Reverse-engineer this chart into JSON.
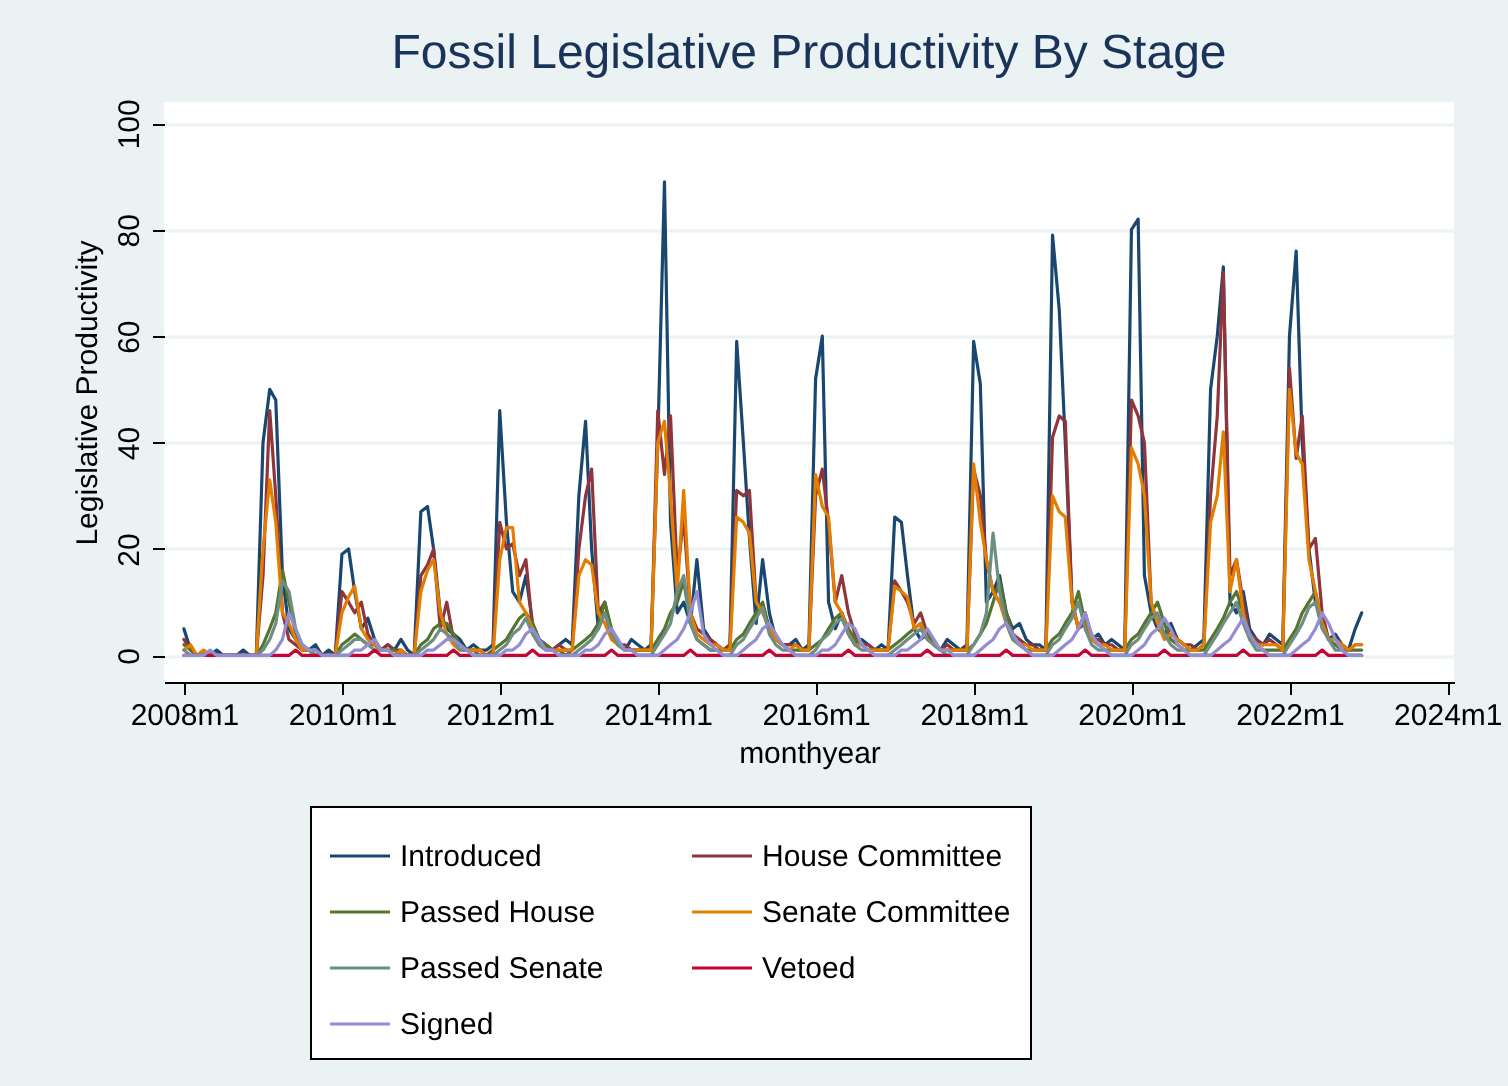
{
  "chart_data": {
    "type": "line",
    "title": "Fossil Legislative Productivity By Stage",
    "xlabel": "monthyear",
    "ylabel": "Legislative Productivity",
    "x": [
      "2008-01",
      "2008-02",
      "2008-03",
      "2008-04",
      "2008-05",
      "2008-06",
      "2008-07",
      "2008-08",
      "2008-09",
      "2008-10",
      "2008-11",
      "2008-12",
      "2009-01",
      "2009-02",
      "2009-03",
      "2009-04",
      "2009-05",
      "2009-06",
      "2009-07",
      "2009-08",
      "2009-09",
      "2009-10",
      "2009-11",
      "2009-12",
      "2010-01",
      "2010-02",
      "2010-03",
      "2010-04",
      "2010-05",
      "2010-06",
      "2010-07",
      "2010-08",
      "2010-09",
      "2010-10",
      "2010-11",
      "2010-12",
      "2011-01",
      "2011-02",
      "2011-03",
      "2011-04",
      "2011-05",
      "2011-06",
      "2011-07",
      "2011-08",
      "2011-09",
      "2011-10",
      "2011-11",
      "2011-12",
      "2012-01",
      "2012-02",
      "2012-03",
      "2012-04",
      "2012-05",
      "2012-06",
      "2012-07",
      "2012-08",
      "2012-09",
      "2012-10",
      "2012-11",
      "2012-12",
      "2013-01",
      "2013-02",
      "2013-03",
      "2013-04",
      "2013-05",
      "2013-06",
      "2013-07",
      "2013-08",
      "2013-09",
      "2013-10",
      "2013-11",
      "2013-12",
      "2014-01",
      "2014-02",
      "2014-03",
      "2014-04",
      "2014-05",
      "2014-06",
      "2014-07",
      "2014-08",
      "2014-09",
      "2014-10",
      "2014-11",
      "2014-12",
      "2015-01",
      "2015-02",
      "2015-03",
      "2015-04",
      "2015-05",
      "2015-06",
      "2015-07",
      "2015-08",
      "2015-09",
      "2015-10",
      "2015-11",
      "2015-12",
      "2016-01",
      "2016-02",
      "2016-03",
      "2016-04",
      "2016-05",
      "2016-06",
      "2016-07",
      "2016-08",
      "2016-09",
      "2016-10",
      "2016-11",
      "2016-12",
      "2017-01",
      "2017-02",
      "2017-03",
      "2017-04",
      "2017-05",
      "2017-06",
      "2017-07",
      "2017-08",
      "2017-09",
      "2017-10",
      "2017-11",
      "2017-12",
      "2018-01",
      "2018-02",
      "2018-03",
      "2018-04",
      "2018-05",
      "2018-06",
      "2018-07",
      "2018-08",
      "2018-09",
      "2018-10",
      "2018-11",
      "2018-12",
      "2019-01",
      "2019-02",
      "2019-03",
      "2019-04",
      "2019-05",
      "2019-06",
      "2019-07",
      "2019-08",
      "2019-09",
      "2019-10",
      "2019-11",
      "2019-12",
      "2020-01",
      "2020-02",
      "2020-03",
      "2020-04",
      "2020-05",
      "2020-06",
      "2020-07",
      "2020-08",
      "2020-09",
      "2020-10",
      "2020-11",
      "2020-12",
      "2021-01",
      "2021-02",
      "2021-03",
      "2021-04",
      "2021-05",
      "2021-06",
      "2021-07",
      "2021-08",
      "2021-09",
      "2021-10",
      "2021-11",
      "2021-12",
      "2022-01",
      "2022-02",
      "2022-03",
      "2022-04",
      "2022-05",
      "2022-06",
      "2022-07",
      "2022-08",
      "2022-09",
      "2022-10",
      "2022-11",
      "2022-12"
    ],
    "series": [
      {
        "name": "Introduced",
        "color": "#1a476f",
        "values": [
          5,
          1,
          0,
          0,
          0,
          1,
          0,
          0,
          0,
          1,
          0,
          0,
          40,
          50,
          48,
          15,
          5,
          3,
          1,
          1,
          2,
          0,
          1,
          0,
          19,
          20,
          12,
          5,
          7,
          3,
          1,
          2,
          1,
          3,
          1,
          0,
          27,
          28,
          20,
          8,
          5,
          4,
          3,
          1,
          2,
          1,
          1,
          2,
          46,
          25,
          12,
          10,
          15,
          6,
          3,
          2,
          1,
          2,
          3,
          2,
          30,
          44,
          20,
          5,
          8,
          4,
          2,
          1,
          3,
          2,
          1,
          2,
          40,
          89,
          25,
          8,
          10,
          6,
          18,
          5,
          3,
          2,
          1,
          2,
          59,
          40,
          22,
          6,
          18,
          8,
          3,
          2,
          2,
          3,
          1,
          2,
          52,
          60,
          10,
          5,
          8,
          4,
          2,
          3,
          2,
          1,
          2,
          1,
          26,
          25,
          15,
          5,
          3,
          4,
          2,
          1,
          3,
          2,
          1,
          2,
          59,
          51,
          10,
          12,
          15,
          8,
          5,
          6,
          3,
          2,
          2,
          1,
          79,
          65,
          40,
          10,
          5,
          8,
          3,
          4,
          2,
          3,
          2,
          1,
          80,
          82,
          15,
          8,
          5,
          4,
          6,
          3,
          2,
          1,
          2,
          3,
          50,
          60,
          73,
          10,
          8,
          12,
          5,
          3,
          2,
          4,
          3,
          2,
          60,
          76,
          40,
          20,
          10,
          6,
          3,
          4,
          2,
          1,
          5,
          8
        ]
      },
      {
        "name": "House Committee",
        "color": "#90353b",
        "values": [
          3,
          1,
          0,
          0,
          0,
          0,
          0,
          0,
          0,
          0,
          0,
          0,
          15,
          46,
          30,
          8,
          3,
          2,
          1,
          1,
          0,
          0,
          0,
          0,
          12,
          10,
          8,
          10,
          4,
          2,
          1,
          2,
          1,
          1,
          0,
          0,
          15,
          17,
          20,
          5,
          10,
          3,
          2,
          1,
          1,
          1,
          0,
          1,
          25,
          20,
          21,
          15,
          18,
          5,
          3,
          2,
          1,
          2,
          1,
          1,
          20,
          30,
          35,
          8,
          10,
          4,
          2,
          2,
          1,
          1,
          1,
          1,
          46,
          34,
          45,
          15,
          26,
          8,
          5,
          4,
          3,
          2,
          1,
          2,
          31,
          30,
          31,
          10,
          9,
          5,
          3,
          2,
          2,
          2,
          1,
          1,
          30,
          35,
          25,
          10,
          15,
          8,
          4,
          2,
          2,
          1,
          1,
          1,
          14,
          12,
          10,
          6,
          8,
          4,
          2,
          1,
          2,
          1,
          1,
          1,
          35,
          30,
          18,
          12,
          10,
          8,
          4,
          3,
          2,
          2,
          1,
          1,
          41,
          45,
          44,
          10,
          5,
          6,
          3,
          3,
          2,
          2,
          1,
          1,
          48,
          45,
          40,
          10,
          6,
          4,
          5,
          3,
          2,
          2,
          1,
          2,
          30,
          45,
          72,
          15,
          18,
          10,
          4,
          3,
          2,
          3,
          2,
          1,
          54,
          37,
          45,
          20,
          22,
          8,
          3,
          3,
          2,
          1,
          2,
          2
        ]
      },
      {
        "name": "Passed House",
        "color": "#55752f",
        "values": [
          2,
          1,
          0,
          0,
          0,
          0,
          0,
          0,
          0,
          0,
          0,
          0,
          2,
          5,
          8,
          16,
          10,
          4,
          2,
          1,
          1,
          0,
          0,
          0,
          2,
          3,
          4,
          3,
          2,
          2,
          1,
          1,
          1,
          0,
          0,
          0,
          2,
          3,
          5,
          6,
          6,
          4,
          2,
          1,
          1,
          0,
          0,
          1,
          2,
          3,
          5,
          7,
          8,
          6,
          3,
          2,
          1,
          1,
          0,
          1,
          2,
          3,
          4,
          6,
          10,
          5,
          2,
          1,
          1,
          1,
          1,
          1,
          3,
          5,
          8,
          10,
          14,
          6,
          3,
          2,
          1,
          1,
          1,
          1,
          3,
          4,
          6,
          8,
          10,
          5,
          3,
          2,
          1,
          1,
          1,
          1,
          2,
          3,
          5,
          7,
          8,
          5,
          3,
          2,
          1,
          1,
          1,
          1,
          2,
          3,
          4,
          5,
          6,
          4,
          2,
          1,
          1,
          1,
          1,
          1,
          2,
          4,
          6,
          10,
          14,
          8,
          4,
          2,
          1,
          1,
          1,
          1,
          3,
          4,
          6,
          8,
          12,
          6,
          3,
          2,
          1,
          1,
          1,
          1,
          3,
          4,
          6,
          8,
          10,
          6,
          3,
          2,
          1,
          1,
          1,
          1,
          3,
          5,
          7,
          10,
          12,
          8,
          4,
          2,
          1,
          1,
          1,
          1,
          3,
          5,
          8,
          10,
          12,
          6,
          3,
          2,
          1,
          1,
          1,
          1
        ]
      },
      {
        "name": "Senate Committee",
        "color": "#e37e00",
        "values": [
          1,
          2,
          0,
          1,
          0,
          0,
          0,
          0,
          0,
          0,
          0,
          0,
          20,
          33,
          25,
          8,
          6,
          3,
          1,
          1,
          0,
          0,
          0,
          0,
          8,
          11,
          13,
          5,
          3,
          2,
          1,
          1,
          0,
          1,
          0,
          0,
          12,
          16,
          18,
          8,
          4,
          2,
          1,
          1,
          1,
          1,
          0,
          0,
          18,
          24,
          24,
          10,
          8,
          5,
          2,
          1,
          1,
          1,
          1,
          1,
          15,
          18,
          17,
          8,
          6,
          3,
          2,
          1,
          1,
          1,
          1,
          1,
          40,
          44,
          30,
          12,
          31,
          8,
          4,
          3,
          2,
          2,
          1,
          1,
          26,
          25,
          23,
          10,
          8,
          5,
          3,
          2,
          1,
          2,
          1,
          1,
          34,
          28,
          26,
          10,
          8,
          4,
          2,
          2,
          1,
          1,
          1,
          1,
          13,
          12,
          11,
          5,
          6,
          3,
          2,
          1,
          1,
          1,
          1,
          1,
          36,
          25,
          18,
          12,
          10,
          6,
          3,
          2,
          2,
          1,
          1,
          1,
          30,
          27,
          26,
          10,
          5,
          8,
          3,
          2,
          2,
          1,
          1,
          1,
          39,
          36,
          30,
          10,
          6,
          3,
          4,
          3,
          2,
          1,
          1,
          2,
          25,
          30,
          42,
          12,
          18,
          8,
          3,
          2,
          2,
          2,
          2,
          1,
          50,
          38,
          36,
          18,
          12,
          6,
          3,
          3,
          2,
          1,
          2,
          2
        ]
      },
      {
        "name": "Passed Senate",
        "color": "#6e8e84",
        "values": [
          1,
          0,
          0,
          0,
          0,
          0,
          0,
          0,
          0,
          0,
          0,
          0,
          1,
          3,
          6,
          14,
          12,
          5,
          2,
          1,
          0,
          0,
          0,
          0,
          1,
          2,
          3,
          3,
          2,
          1,
          1,
          1,
          0,
          0,
          0,
          0,
          1,
          2,
          3,
          5,
          4,
          3,
          1,
          1,
          0,
          0,
          0,
          0,
          1,
          2,
          4,
          5,
          7,
          4,
          2,
          1,
          1,
          0,
          0,
          0,
          1,
          2,
          3,
          5,
          8,
          4,
          2,
          1,
          1,
          0,
          0,
          0,
          2,
          4,
          6,
          12,
          15,
          6,
          3,
          2,
          1,
          1,
          0,
          0,
          2,
          3,
          5,
          7,
          9,
          4,
          2,
          1,
          1,
          0,
          0,
          0,
          1,
          3,
          4,
          6,
          7,
          4,
          2,
          1,
          1,
          0,
          0,
          0,
          1,
          2,
          3,
          4,
          5,
          3,
          2,
          1,
          0,
          0,
          0,
          0,
          2,
          4,
          8,
          23,
          12,
          6,
          3,
          2,
          1,
          0,
          0,
          0,
          2,
          3,
          5,
          7,
          10,
          5,
          2,
          1,
          1,
          0,
          0,
          0,
          2,
          3,
          5,
          7,
          8,
          4,
          2,
          1,
          1,
          0,
          0,
          0,
          2,
          4,
          6,
          8,
          10,
          6,
          3,
          1,
          1,
          0,
          0,
          0,
          2,
          4,
          6,
          9,
          10,
          5,
          3,
          1,
          1,
          0,
          0,
          0
        ]
      },
      {
        "name": "Vetoed",
        "color": "#c10534",
        "values": [
          0,
          0,
          0,
          0,
          0,
          0,
          0,
          0,
          0,
          0,
          0,
          0,
          0,
          0,
          0,
          0,
          0,
          1,
          0,
          0,
          0,
          0,
          0,
          0,
          0,
          0,
          0,
          0,
          0,
          1,
          0,
          0,
          0,
          0,
          0,
          0,
          0,
          0,
          0,
          0,
          0,
          1,
          0,
          0,
          0,
          0,
          0,
          0,
          0,
          0,
          0,
          0,
          0,
          1,
          0,
          0,
          0,
          0,
          0,
          0,
          0,
          0,
          0,
          0,
          0,
          1,
          0,
          0,
          0,
          0,
          0,
          0,
          0,
          0,
          0,
          0,
          0,
          1,
          0,
          0,
          0,
          0,
          0,
          0,
          0,
          0,
          0,
          0,
          0,
          1,
          0,
          0,
          0,
          0,
          0,
          0,
          0,
          0,
          0,
          0,
          0,
          1,
          0,
          0,
          0,
          0,
          0,
          0,
          0,
          0,
          0,
          0,
          0,
          1,
          0,
          0,
          0,
          0,
          0,
          0,
          0,
          0,
          0,
          0,
          0,
          1,
          0,
          0,
          0,
          0,
          0,
          0,
          0,
          0,
          0,
          0,
          0,
          1,
          0,
          0,
          0,
          0,
          0,
          0,
          0,
          0,
          0,
          0,
          0,
          1,
          0,
          0,
          0,
          0,
          0,
          0,
          0,
          0,
          0,
          0,
          0,
          1,
          0,
          0,
          0,
          0,
          0,
          0,
          0,
          0,
          0,
          0,
          0,
          1,
          0,
          0,
          0,
          0,
          0,
          0
        ]
      },
      {
        "name": "Signed",
        "color": "#938dd2",
        "values": [
          0,
          0,
          0,
          0,
          1,
          0,
          0,
          0,
          0,
          0,
          0,
          0,
          0,
          0,
          1,
          3,
          8,
          5,
          2,
          1,
          1,
          0,
          0,
          0,
          0,
          0,
          1,
          1,
          2,
          3,
          1,
          1,
          0,
          0,
          0,
          0,
          0,
          1,
          1,
          2,
          3,
          3,
          2,
          1,
          0,
          0,
          0,
          0,
          0,
          1,
          1,
          2,
          4,
          5,
          3,
          1,
          1,
          0,
          0,
          0,
          0,
          1,
          1,
          2,
          4,
          5,
          3,
          1,
          1,
          0,
          0,
          0,
          0,
          1,
          2,
          3,
          5,
          8,
          12,
          4,
          2,
          1,
          0,
          0,
          0,
          1,
          2,
          3,
          5,
          6,
          4,
          2,
          1,
          0,
          0,
          0,
          0,
          1,
          1,
          2,
          4,
          6,
          5,
          2,
          1,
          0,
          0,
          0,
          0,
          1,
          1,
          2,
          3,
          5,
          3,
          1,
          1,
          0,
          0,
          0,
          0,
          1,
          2,
          3,
          5,
          6,
          4,
          2,
          1,
          0,
          0,
          0,
          0,
          1,
          2,
          3,
          5,
          8,
          4,
          2,
          1,
          0,
          0,
          0,
          0,
          1,
          2,
          4,
          5,
          7,
          5,
          2,
          1,
          0,
          0,
          0,
          0,
          1,
          2,
          3,
          5,
          7,
          4,
          2,
          1,
          0,
          0,
          0,
          0,
          1,
          2,
          3,
          5,
          8,
          6,
          3,
          1,
          0,
          0,
          0
        ]
      }
    ],
    "xlim": [
      "2007-10",
      "2024-02"
    ],
    "ylim": [
      -5,
      104
    ],
    "xticks": [
      {
        "value": "2008-01",
        "label": "2008m1"
      },
      {
        "value": "2010-01",
        "label": "2010m1"
      },
      {
        "value": "2012-01",
        "label": "2012m1"
      },
      {
        "value": "2014-01",
        "label": "2014m1"
      },
      {
        "value": "2016-01",
        "label": "2016m1"
      },
      {
        "value": "2018-01",
        "label": "2018m1"
      },
      {
        "value": "2020-01",
        "label": "2020m1"
      },
      {
        "value": "2022-01",
        "label": "2022m1"
      },
      {
        "value": "2024-01",
        "label": "2024m1"
      }
    ],
    "yticks": [
      0,
      20,
      40,
      60,
      80,
      100
    ],
    "grid": "y",
    "legend": "bottom"
  }
}
